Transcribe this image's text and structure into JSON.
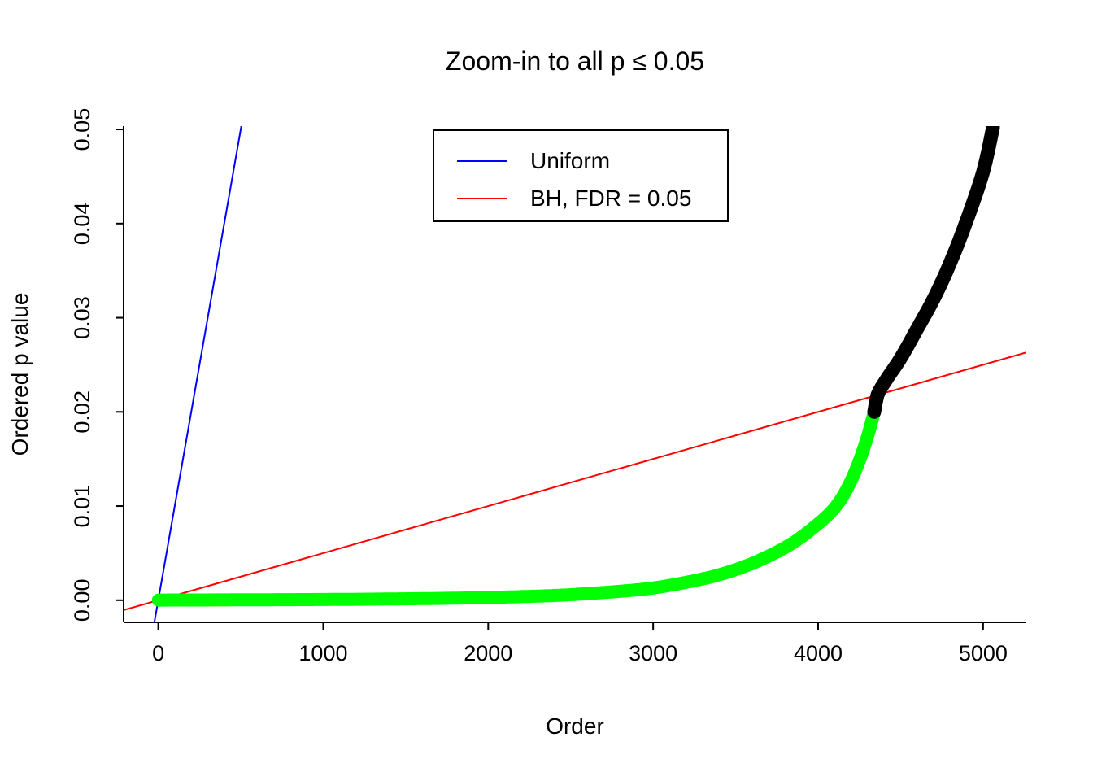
{
  "chart_data": {
    "type": "scatter",
    "title": "Zoom-in to all p ≤ 0.05",
    "xlabel": "Order",
    "ylabel": "Ordered p value",
    "xlim": [
      -210,
      5262
    ],
    "ylim": [
      -0.00235,
      0.05035
    ],
    "grid": false,
    "x_ticks": [
      0,
      1000,
      2000,
      3000,
      4000,
      5000
    ],
    "x_tick_labels": [
      "0",
      "1000",
      "2000",
      "3000",
      "4000",
      "5000"
    ],
    "y_ticks": [
      0,
      0.01,
      0.02,
      0.03,
      0.04,
      0.05
    ],
    "y_tick_labels": [
      "0.00",
      "0.01",
      "0.02",
      "0.03",
      "0.04",
      "0.05"
    ],
    "legend": {
      "position": "top-center",
      "items": [
        {
          "label": "Uniform",
          "color": "#0000ff"
        },
        {
          "label": "BH, FDR = 0.05",
          "color": "#ff0000"
        }
      ]
    },
    "reference_lines": {
      "uniform": {
        "slope": 0.0001,
        "intercept": 0,
        "color": "#0000ff"
      },
      "bh": {
        "slope": 5e-06,
        "intercept": 0,
        "color": "#ff0000",
        "fdr": 0.05,
        "total_tests": 10000
      }
    },
    "points": {
      "significant_color": "#00ff00",
      "nonsignificant_color": "#000000",
      "bh_crossing_order": 4360,
      "bh_crossing_p": 0.0218,
      "max_order_shown": 5060,
      "max_p_shown": 0.0502,
      "marker_size_px": 16,
      "curve_anchors": [
        [
          1,
          2e-05
        ],
        [
          300,
          3e-05
        ],
        [
          600,
          5e-05
        ],
        [
          900,
          7e-05
        ],
        [
          1200,
          0.0001
        ],
        [
          1500,
          0.00015
        ],
        [
          1800,
          0.00022
        ],
        [
          2100,
          0.00033
        ],
        [
          2400,
          0.0005
        ],
        [
          2600,
          0.0007
        ],
        [
          2800,
          0.00095
        ],
        [
          3000,
          0.0013
        ],
        [
          3200,
          0.0019
        ],
        [
          3400,
          0.0027
        ],
        [
          3600,
          0.0039
        ],
        [
          3800,
          0.0056
        ],
        [
          3950,
          0.0074
        ],
        [
          4100,
          0.0098
        ],
        [
          4200,
          0.0127
        ],
        [
          4280,
          0.0163
        ],
        [
          4340,
          0.02
        ],
        [
          4360,
          0.0218
        ],
        [
          4420,
          0.0236
        ],
        [
          4500,
          0.0257
        ],
        [
          4600,
          0.0288
        ],
        [
          4700,
          0.032
        ],
        [
          4800,
          0.0358
        ],
        [
          4900,
          0.0403
        ],
        [
          5000,
          0.0455
        ],
        [
          5060,
          0.0502
        ]
      ]
    }
  }
}
